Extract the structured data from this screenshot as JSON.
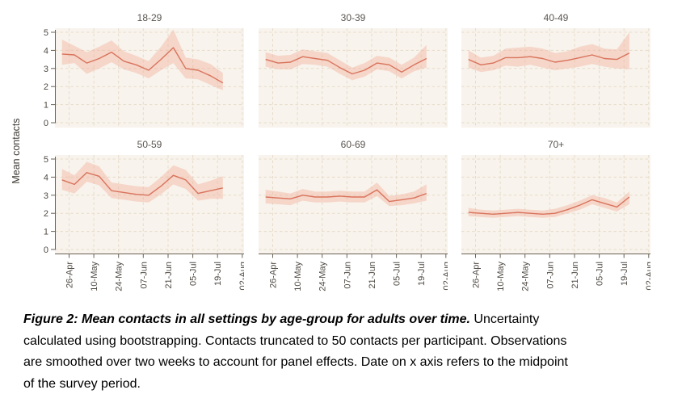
{
  "figure": {
    "y_axis_title": "Mean contacts",
    "colors": {
      "line": "#d9735c",
      "band": "#f0ad99",
      "panel_bg": "#f8f3ec",
      "grid": "#e6dcca",
      "axis": "#6a6154",
      "tick_text": "#4f4a44",
      "title_text": "#5a5550"
    }
  },
  "chart_data": {
    "type": "line",
    "title": "Mean contacts in all settings by age-group for adults over time",
    "ylabel": "Mean contacts",
    "ylim": [
      0,
      5.25
    ],
    "y_ticks": [
      0,
      1,
      2,
      3,
      4,
      5
    ],
    "x_tick_labels": [
      "26-Apr",
      "10-May",
      "24-May",
      "07-Jun",
      "21-Jun",
      "05-Jul",
      "19-Jul",
      "02-Aug"
    ],
    "x_tick_day_offsets": [
      8,
      22,
      36,
      50,
      64,
      78,
      92,
      106
    ],
    "x_domain_days": [
      0,
      107
    ],
    "point_day_offsets": [
      4,
      11,
      18,
      25,
      32,
      39,
      46,
      53,
      60,
      67,
      74,
      81,
      88,
      95
    ],
    "grid": "dashed",
    "legend": "none",
    "facets": [
      {
        "title": "18-29",
        "mean": [
          3.8,
          3.75,
          3.3,
          3.55,
          3.9,
          3.4,
          3.2,
          2.9,
          3.5,
          4.15,
          3.0,
          2.9,
          2.6,
          2.2
        ],
        "upper": [
          4.6,
          4.25,
          3.9,
          4.2,
          4.55,
          3.95,
          3.7,
          3.4,
          4.2,
          5.15,
          3.6,
          3.5,
          3.25,
          2.75
        ],
        "lower": [
          3.2,
          3.3,
          2.7,
          3.0,
          3.35,
          2.95,
          2.75,
          2.45,
          2.9,
          3.3,
          2.45,
          2.4,
          2.1,
          1.8
        ]
      },
      {
        "title": "30-39",
        "mean": [
          3.5,
          3.3,
          3.35,
          3.65,
          3.55,
          3.45,
          3.05,
          2.7,
          2.9,
          3.3,
          3.2,
          2.8,
          3.2,
          3.55
        ],
        "upper": [
          3.9,
          3.7,
          3.75,
          4.05,
          3.95,
          3.85,
          3.45,
          3.05,
          3.3,
          3.7,
          3.6,
          3.2,
          3.6,
          4.3
        ],
        "lower": [
          3.1,
          2.95,
          2.95,
          3.25,
          3.2,
          3.1,
          2.7,
          2.35,
          2.55,
          2.95,
          2.85,
          2.45,
          2.85,
          3.05
        ]
      },
      {
        "title": "40-49",
        "mean": [
          3.5,
          3.2,
          3.3,
          3.6,
          3.6,
          3.65,
          3.55,
          3.35,
          3.45,
          3.6,
          3.75,
          3.55,
          3.5,
          3.85
        ],
        "upper": [
          4.0,
          3.6,
          3.7,
          4.1,
          4.15,
          4.2,
          4.1,
          3.85,
          3.95,
          4.2,
          4.35,
          4.1,
          4.05,
          5.0
        ],
        "lower": [
          3.05,
          2.8,
          2.9,
          3.15,
          3.1,
          3.2,
          3.05,
          2.9,
          3.0,
          3.1,
          3.25,
          3.1,
          3.0,
          2.95
        ]
      },
      {
        "title": "50-59",
        "mean": [
          3.85,
          3.6,
          4.25,
          4.05,
          3.25,
          3.15,
          3.05,
          3.0,
          3.5,
          4.1,
          3.85,
          3.1,
          3.25,
          3.4
        ],
        "upper": [
          4.45,
          4.1,
          4.85,
          4.6,
          3.7,
          3.6,
          3.5,
          3.45,
          4.0,
          4.65,
          4.4,
          3.6,
          3.8,
          4.05
        ],
        "lower": [
          3.3,
          3.1,
          3.75,
          3.55,
          2.85,
          2.75,
          2.65,
          2.6,
          3.05,
          3.6,
          3.35,
          2.7,
          2.8,
          2.8
        ]
      },
      {
        "title": "60-69",
        "mean": [
          2.9,
          2.85,
          2.8,
          3.0,
          2.9,
          2.9,
          2.95,
          2.9,
          2.9,
          3.3,
          2.65,
          2.75,
          2.85,
          3.1
        ],
        "upper": [
          3.3,
          3.2,
          3.1,
          3.35,
          3.2,
          3.2,
          3.25,
          3.2,
          3.2,
          3.7,
          2.95,
          3.05,
          3.2,
          3.6
        ],
        "lower": [
          2.55,
          2.5,
          2.45,
          2.7,
          2.6,
          2.6,
          2.65,
          2.6,
          2.6,
          2.95,
          2.4,
          2.45,
          2.55,
          2.7
        ]
      },
      {
        "title": "70+",
        "mean": [
          2.05,
          2.0,
          1.95,
          2.0,
          2.05,
          2.0,
          1.95,
          2.0,
          2.2,
          2.45,
          2.75,
          2.55,
          2.35,
          2.9
        ],
        "upper": [
          2.3,
          2.2,
          2.15,
          2.2,
          2.25,
          2.2,
          2.15,
          2.25,
          2.45,
          2.7,
          3.0,
          2.85,
          2.6,
          3.2
        ],
        "lower": [
          1.85,
          1.8,
          1.75,
          1.8,
          1.85,
          1.8,
          1.75,
          1.8,
          2.0,
          2.2,
          2.5,
          2.3,
          2.1,
          2.5
        ]
      }
    ]
  },
  "caption": {
    "line1_bold": "Figure 2: Mean contacts in all settings by age-group for adults over time.",
    "line1_rest": " Uncertainty",
    "line2": "calculated using bootstrapping. Contacts truncated to 50 contacts per participant. Observations",
    "line3": "are smoothed over two weeks to account for panel effects. Date on x axis refers to the midpoint",
    "line4": "of the survey period."
  }
}
